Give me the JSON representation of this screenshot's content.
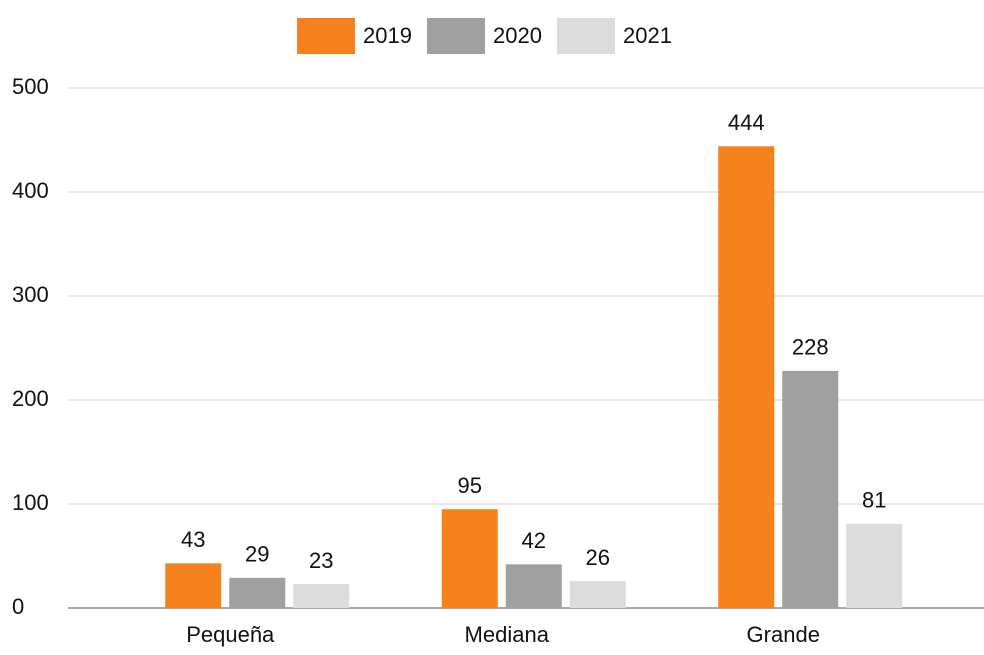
{
  "chart_data": {
    "type": "bar",
    "categories": [
      "Pequeña",
      "Mediana",
      "Grande"
    ],
    "series": [
      {
        "name": "2019",
        "color": "#f5821f",
        "values": [
          43,
          95,
          444
        ]
      },
      {
        "name": "2020",
        "color": "#a0a0a0",
        "values": [
          29,
          42,
          228
        ]
      },
      {
        "name": "2021",
        "color": "#dcdcdc",
        "values": [
          23,
          26,
          81
        ]
      }
    ],
    "ylim": [
      0,
      500
    ],
    "yticks": [
      0,
      100,
      200,
      300,
      400,
      500
    ],
    "grid": true,
    "legend": "top"
  }
}
